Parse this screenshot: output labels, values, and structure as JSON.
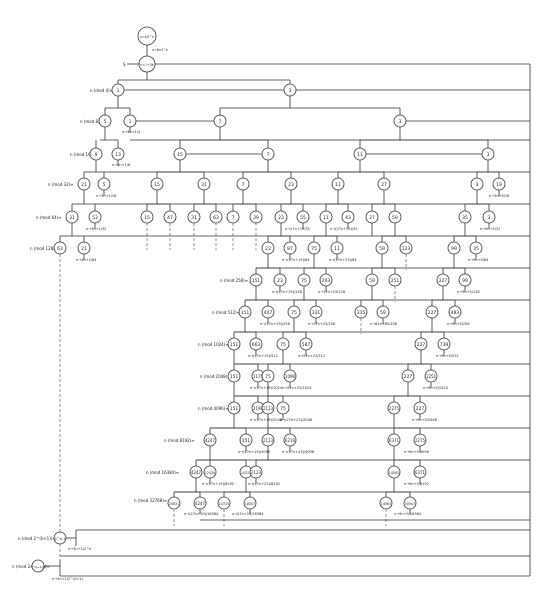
{
  "top": {
    "label": "n=s/2^k",
    "cond": "n=6×2^k"
  },
  "start_node": "n=1+3k",
  "start_dir": "S",
  "rows": [
    {
      "mod": "n (mod 4)≡",
      "nodes": [
        "1",
        "3"
      ]
    },
    {
      "mod": "n (mod 8)≡",
      "nodes": [
        "5",
        "1",
        "7",
        "3"
      ],
      "note": "n→3n+1/4"
    },
    {
      "mod": "n (mod 16)≡",
      "nodes": [
        "9",
        "13",
        "15",
        "7",
        "11",
        "3"
      ],
      "note": "n→3n+1/8"
    },
    {
      "mod": "n (mod 32)≡",
      "nodes": [
        "21",
        "5",
        "15",
        "31",
        "7",
        "23",
        "11",
        "27",
        "3",
        "19"
      ],
      "note": "n→3n+1/16",
      "note2": "n→3n+5/16"
    },
    {
      "mod": "n (mod 64)≡",
      "nodes": [
        "31",
        "53",
        "15",
        "47",
        "31",
        "63",
        "7",
        "39",
        "23",
        "55",
        "11",
        "43",
        "27",
        "59",
        "35",
        "3"
      ],
      "note": "n→3n+1/32",
      "note2": "n→(27n+23)/32",
      "note3": "n→27n+19/32",
      "note4": "n→9n+5/32"
    },
    {
      "mod": "n (mod 128)≡",
      "nodes": [
        "63",
        "21",
        "23",
        "87",
        "75",
        "11",
        "59",
        "123",
        "99",
        "35"
      ],
      "note": "n→3n+1/64",
      "note2": "n→(27n+19)/64",
      "note3": "n→(27n+23)/64",
      "note4": "n→9n+5/64"
    },
    {
      "mod": "n (mod 256)≡",
      "nodes": [
        "151",
        "23",
        "75",
        "203",
        "59",
        "251",
        "227",
        "99"
      ],
      "note": "n→(27n+19)/128",
      "note2": "n→27n+23/128",
      "note3": "n→9n+5/128"
    },
    {
      "mod": "n (mod 512)≡",
      "nodes": [
        "151",
        "407",
        "75",
        "331",
        "315",
        "59",
        "227",
        "483"
      ],
      "note": "n→(27n+19)/256",
      "note2": "n→27n+23/256",
      "note3": "n→81n+65/256",
      "note4": "n→9n+5/256"
    },
    {
      "mod": "n (mod 1024)≡",
      "nodes": [
        "151",
        "663",
        "75",
        "587",
        "227",
        "739"
      ],
      "note": "n→(27n+19)/512",
      "note2": "n→27n+23/512",
      "note3": "n→9n+5/512"
    },
    {
      "mod": "n (mod 2048)≡",
      "nodes": [
        "151",
        "1175",
        "75",
        "1099",
        "227",
        "1251"
      ],
      "note": "n→(27n+19)/1024",
      "note2": "n→27n+23/1024",
      "note3": "n→9n+5/1024"
    },
    {
      "mod": "n (mod 4096)≡",
      "nodes": [
        "151",
        "2199",
        "2123",
        "75",
        "2275",
        "227"
      ],
      "note": "n→(27n+19)/2048",
      "note2": "n→(27n+23)/2048",
      "note3": "n→9n+5/2048"
    },
    {
      "mod": "n (mod 8192)≡",
      "nodes": [
        "4247",
        "151",
        "2123",
        "6219",
        "6371",
        "2275"
      ],
      "note": "n→(27n+19)/4096",
      "note2": "n→(27n+23)/4096",
      "note3": "n→9n+5/4096"
    },
    {
      "mod": "n (mod 16384)≡",
      "nodes": [
        "4247",
        "12439",
        "10315",
        "2123",
        "14563",
        "6371"
      ],
      "note": "n→(27n+19)/8192",
      "note2": "n→(27n+23)/8192",
      "note3": "n→9n+5/8192"
    },
    {
      "mod": "n (mod 32768)≡",
      "nodes": [
        "20631",
        "4247",
        "10315",
        "18507",
        "14563",
        "30947"
      ],
      "note": "n→(27n+19)/16384",
      "note2": "n→27n+23/16384",
      "note3": "n→9n+5/16384"
    },
    {
      "mod": "n (mod 2^(k+1))≡",
      "nodes": [
        "2^k-1"
      ],
      "note": "n→3n+1/2^k"
    },
    {
      "mod": "n (mod 2^(k+1))≡",
      "nodes": [
        "2^(k+1)-1"
      ],
      "note": "n→3n+1/2^(k+1)"
    }
  ]
}
